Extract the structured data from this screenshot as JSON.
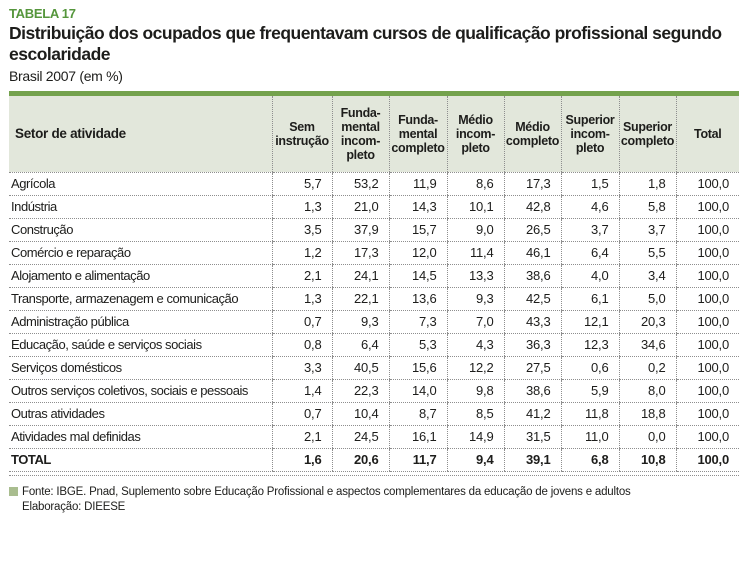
{
  "page": {
    "label": "TABELA 17",
    "title": "Distribuição dos ocupados que frequentavam cursos de qualificação profissional segundo escolaridade",
    "subtitle": "Brasil 2007 (em %)"
  },
  "table": {
    "columns": [
      "Setor de atividade",
      "Sem\ninstrução",
      "Funda-\nmental\nincom-\npleto",
      "Funda-\nmental\ncompleto",
      "Médio\nincom-\npleto",
      "Médio\ncompleto",
      "Superior\nincom-\npleto",
      "Superior\ncompleto",
      "Total"
    ],
    "rows": [
      {
        "label": "Agrícola",
        "values": [
          "5,7",
          "53,2",
          "11,9",
          "8,6",
          "17,3",
          "1,5",
          "1,8",
          "100,0"
        ]
      },
      {
        "label": "Indústria",
        "values": [
          "1,3",
          "21,0",
          "14,3",
          "10,1",
          "42,8",
          "4,6",
          "5,8",
          "100,0"
        ]
      },
      {
        "label": "Construção",
        "values": [
          "3,5",
          "37,9",
          "15,7",
          "9,0",
          "26,5",
          "3,7",
          "3,7",
          "100,0"
        ]
      },
      {
        "label": "Comércio e reparação",
        "values": [
          "1,2",
          "17,3",
          "12,0",
          "11,4",
          "46,1",
          "6,4",
          "5,5",
          "100,0"
        ]
      },
      {
        "label": "Alojamento e alimentação",
        "values": [
          "2,1",
          "24,1",
          "14,5",
          "13,3",
          "38,6",
          "4,0",
          "3,4",
          "100,0"
        ]
      },
      {
        "label": "Transporte, armazenagem e comunicação",
        "values": [
          "1,3",
          "22,1",
          "13,6",
          "9,3",
          "42,5",
          "6,1",
          "5,0",
          "100,0"
        ]
      },
      {
        "label": "Administração pública",
        "values": [
          "0,7",
          "9,3",
          "7,3",
          "7,0",
          "43,3",
          "12,1",
          "20,3",
          "100,0"
        ]
      },
      {
        "label": "Educação, saúde e serviços sociais",
        "values": [
          "0,8",
          "6,4",
          "5,3",
          "4,3",
          "36,3",
          "12,3",
          "34,6",
          "100,0"
        ]
      },
      {
        "label": "Serviços domésticos",
        "values": [
          "3,3",
          "40,5",
          "15,6",
          "12,2",
          "27,5",
          "0,6",
          "0,2",
          "100,0"
        ]
      },
      {
        "label": "Outros serviços coletivos, sociais e pessoais",
        "values": [
          "1,4",
          "22,3",
          "14,0",
          "9,8",
          "38,6",
          "5,9",
          "8,0",
          "100,0"
        ]
      },
      {
        "label": "Outras atividades",
        "values": [
          "0,7",
          "10,4",
          "8,7",
          "8,5",
          "41,2",
          "11,8",
          "18,8",
          "100,0"
        ]
      },
      {
        "label": "Atividades mal definidas",
        "values": [
          "2,1",
          "24,5",
          "16,1",
          "14,9",
          "31,5",
          "11,0",
          "0,0",
          "100,0"
        ]
      }
    ],
    "total": {
      "label": "TOTAL",
      "values": [
        "1,6",
        "20,6",
        "11,7",
        "9,4",
        "39,1",
        "6,8",
        "10,8",
        "100,0"
      ]
    }
  },
  "footer": {
    "source": "Fonte: IBGE. Pnad, Suplemento sobre Educação Profissional e aspectos complementares da educação de jovens e adultos",
    "elaboration": "Elaboração: DIEESE"
  },
  "colors": {
    "accent_green": "#55963c",
    "bar_green": "#74a24d",
    "header_bg": "#e2e7db",
    "footer_square": "#a9bd8f"
  }
}
